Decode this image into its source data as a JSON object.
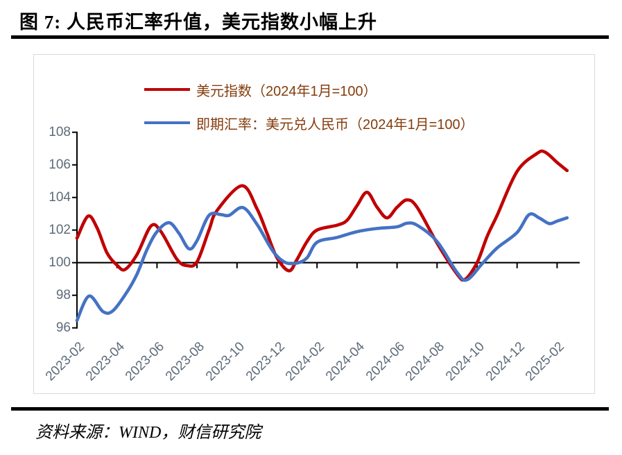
{
  "figure": {
    "title": "图 7: 人民币汇率升值，美元指数小幅上升",
    "source": "资料来源：WIND，财信研究院"
  },
  "colors": {
    "usd_index_line": "#C00000",
    "spot_rate_line": "#4472C4",
    "legend_text": "#843C0C",
    "axis_label_text": "#5d6b79",
    "axis_line": "#000000",
    "chart_border": "#d9d9d9"
  },
  "chart_data": {
    "type": "line",
    "title": "",
    "xlabel": "",
    "ylabel": "",
    "legend_position": "top-inside",
    "grid": false,
    "x_axis": {
      "unit": "months since 2023-02",
      "tick_step_months": 2,
      "tick_labels": [
        "2023-02",
        "2023-04",
        "2023-06",
        "2023-08",
        "2023-10",
        "2023-12",
        "2024-02",
        "2024-04",
        "2024-06",
        "2024-08",
        "2024-10",
        "2024-12",
        "2025-02"
      ],
      "axis_crosses_at_value": 100
    },
    "y_axis": {
      "min": 96,
      "max": 108,
      "ticks": [
        96,
        98,
        100,
        102,
        104,
        106,
        108
      ]
    },
    "series": [
      {
        "name": "美元指数（2024年1月=100）",
        "color": "#C00000",
        "points": [
          [
            0,
            101.5
          ],
          [
            0.55,
            102.85
          ],
          [
            1,
            102.15
          ],
          [
            1.5,
            100.6
          ],
          [
            2,
            99.85
          ],
          [
            2.4,
            99.58
          ],
          [
            3,
            100.5
          ],
          [
            3.7,
            102.25
          ],
          [
            4.2,
            101.9
          ],
          [
            5,
            100.2
          ],
          [
            5.5,
            99.82
          ],
          [
            6,
            100.05
          ],
          [
            6.6,
            102.0
          ],
          [
            7,
            103.2
          ],
          [
            8.25,
            104.72
          ],
          [
            9,
            103.3
          ],
          [
            9.5,
            101.8
          ],
          [
            10,
            100.3
          ],
          [
            10.6,
            99.5
          ],
          [
            11,
            100.2
          ],
          [
            11.5,
            101.3
          ],
          [
            12,
            102.0
          ],
          [
            13,
            102.3
          ],
          [
            13.5,
            102.6
          ],
          [
            14,
            103.5
          ],
          [
            14.5,
            104.32
          ],
          [
            15,
            103.4
          ],
          [
            15.5,
            102.75
          ],
          [
            16,
            103.4
          ],
          [
            16.5,
            103.85
          ],
          [
            17,
            103.4
          ],
          [
            18,
            101.2
          ],
          [
            19,
            99.3
          ],
          [
            19.4,
            98.98
          ],
          [
            20,
            100.0
          ],
          [
            20.5,
            101.6
          ],
          [
            21,
            102.9
          ],
          [
            22,
            105.6
          ],
          [
            23,
            106.7
          ],
          [
            23.4,
            106.78
          ],
          [
            24,
            106.15
          ],
          [
            24.5,
            105.65
          ]
        ]
      },
      {
        "name": "即期汇率：美元兑人民币（2024年1月=100）",
        "color": "#4472C4",
        "points": [
          [
            0,
            96.45
          ],
          [
            0.6,
            97.95
          ],
          [
            1.3,
            97.0
          ],
          [
            1.8,
            97.05
          ],
          [
            2.5,
            98.2
          ],
          [
            3,
            99.3
          ],
          [
            3.5,
            100.8
          ],
          [
            4,
            101.9
          ],
          [
            4.6,
            102.45
          ],
          [
            5.1,
            101.8
          ],
          [
            5.6,
            100.85
          ],
          [
            6,
            101.35
          ],
          [
            6.6,
            102.9
          ],
          [
            7.2,
            102.95
          ],
          [
            7.6,
            102.9
          ],
          [
            8.3,
            103.38
          ],
          [
            9,
            102.35
          ],
          [
            9.8,
            100.7
          ],
          [
            10.4,
            100.02
          ],
          [
            11,
            99.98
          ],
          [
            11.5,
            100.3
          ],
          [
            12,
            101.25
          ],
          [
            13,
            101.55
          ],
          [
            14,
            101.9
          ],
          [
            15,
            102.1
          ],
          [
            16,
            102.2
          ],
          [
            16.5,
            102.42
          ],
          [
            17,
            102.3
          ],
          [
            18,
            101.3
          ],
          [
            19,
            99.4
          ],
          [
            19.5,
            98.95
          ],
          [
            20.3,
            100.0
          ],
          [
            21,
            100.9
          ],
          [
            22,
            101.85
          ],
          [
            22.6,
            102.95
          ],
          [
            23.1,
            102.75
          ],
          [
            23.6,
            102.4
          ],
          [
            24,
            102.55
          ],
          [
            24.5,
            102.75
          ]
        ]
      }
    ]
  }
}
